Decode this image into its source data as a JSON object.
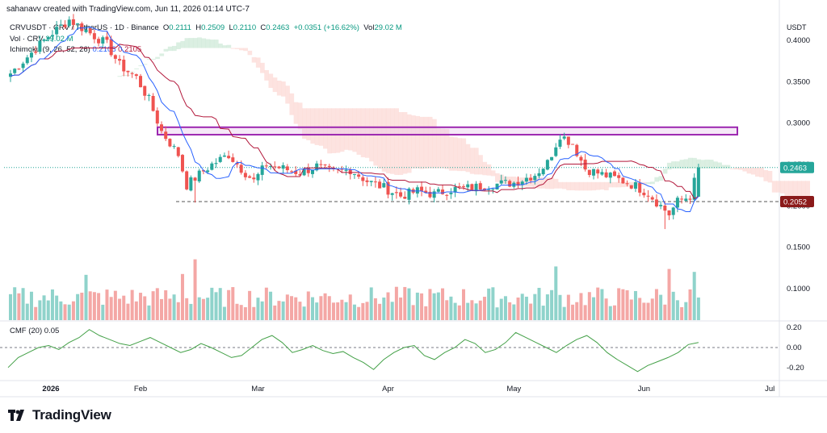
{
  "header": {
    "created_by": "sahanavv created with TradingView.com, Jun 11, 2026 01:14 UTC-7"
  },
  "legend": {
    "symbol": "CRVUSDT · CRV / TetherUS · 1D · Binance",
    "o_label": "O",
    "o_value": "0.2111",
    "h_label": "H",
    "h_value": "0.2509",
    "l_label": "L",
    "l_value": "0.2110",
    "c_label": "C",
    "c_value": "0.2463",
    "change": "+0.0351 (+16.62%)",
    "vol_label": "Vol",
    "vol_value": "29.02 M",
    "vol_line_label": "Vol · CRV",
    "vol_line_value": "29.02 M",
    "ichimoku_label": "Ichimoku (9, 26, 52, 26)",
    "ichimoku_v1": "0.2105",
    "ichimoku_v2": "0.2105"
  },
  "cmf": {
    "label": "CMF (20)",
    "value": "0.05"
  },
  "brand": {
    "name": "TradingView",
    "icon": "tradingview-logo-icon"
  },
  "colors": {
    "up": "#26a69a",
    "down": "#ef5350",
    "vol_up": "#8fd3cb",
    "vol_down": "#f4a7a5",
    "conversion": "#2962ff",
    "base": "#b2173a",
    "cloud_red": "#fcd9d5",
    "cloud_green": "#cfead8",
    "zone": "#9c27b0",
    "cmf": "#43a047"
  },
  "chart_data": {
    "type": "candlestick",
    "title": "CRVUSDT · CRV / TetherUS · 1D · Binance",
    "price_axis": {
      "unit": "USDT",
      "ticks": [
        "0.4000",
        "0.3500",
        "0.3000",
        "0.2500",
        "0.2000",
        "0.1500",
        "0.1000"
      ]
    },
    "time_axis": {
      "labels": [
        "2026",
        "Feb",
        "Mar",
        "Apr",
        "May",
        "Jun",
        "Jul"
      ]
    },
    "cmf_axis": {
      "ticks": [
        "0.20",
        "0.00",
        "-0.20"
      ]
    },
    "current_price": "0.2463",
    "support_level": "0.2052",
    "resistance_zone": [
      0.286,
      0.295
    ],
    "waypoints": [
      [
        0,
        0.36
      ],
      [
        4,
        0.38
      ],
      [
        9,
        0.405
      ],
      [
        14,
        0.425
      ],
      [
        18,
        0.412
      ],
      [
        23,
        0.395
      ],
      [
        26,
        0.37
      ],
      [
        30,
        0.355
      ],
      [
        33,
        0.328
      ],
      [
        36,
        0.29
      ],
      [
        40,
        0.262
      ],
      [
        42,
        0.225
      ],
      [
        45,
        0.238
      ],
      [
        48,
        0.25
      ],
      [
        52,
        0.262
      ],
      [
        55,
        0.245
      ],
      [
        58,
        0.23
      ],
      [
        61,
        0.25
      ],
      [
        65,
        0.245
      ],
      [
        69,
        0.24
      ],
      [
        73,
        0.248
      ],
      [
        77,
        0.24
      ],
      [
        81,
        0.244
      ],
      [
        85,
        0.23
      ],
      [
        89,
        0.222
      ],
      [
        93,
        0.212
      ],
      [
        97,
        0.218
      ],
      [
        101,
        0.214
      ],
      [
        105,
        0.22
      ],
      [
        110,
        0.222
      ],
      [
        115,
        0.226
      ],
      [
        120,
        0.228
      ],
      [
        125,
        0.238
      ],
      [
        128,
        0.252
      ],
      [
        131,
        0.286
      ],
      [
        134,
        0.275
      ],
      [
        137,
        0.245
      ],
      [
        141,
        0.238
      ],
      [
        145,
        0.232
      ],
      [
        149,
        0.224
      ],
      [
        152,
        0.215
      ],
      [
        155,
        0.2
      ],
      [
        157,
        0.19
      ],
      [
        159,
        0.205
      ],
      [
        162,
        0.212
      ],
      [
        164,
        0.2463
      ]
    ],
    "volume_peaks": [
      [
        44,
        0.145
      ],
      [
        41,
        0.11
      ],
      [
        130,
        0.128
      ],
      [
        157,
        0.122
      ],
      [
        163,
        0.115
      ],
      [
        18,
        0.108
      ]
    ],
    "cmf_values": [
      -0.2,
      -0.1,
      -0.05,
      0.0,
      0.02,
      -0.02,
      0.05,
      0.1,
      0.18,
      0.12,
      0.08,
      0.04,
      0.02,
      0.06,
      0.1,
      0.05,
      0.0,
      -0.05,
      -0.02,
      0.04,
      0.0,
      -0.05,
      -0.1,
      -0.08,
      0.0,
      0.08,
      0.12,
      0.05,
      -0.05,
      -0.02,
      0.02,
      -0.03,
      -0.06,
      -0.04,
      -0.1,
      -0.15,
      -0.22,
      -0.12,
      -0.05,
      0.0,
      0.02,
      -0.08,
      -0.12,
      -0.05,
      0.0,
      0.08,
      0.04,
      -0.05,
      -0.02,
      0.05,
      0.15,
      0.1,
      0.05,
      0.0,
      -0.05,
      0.02,
      0.08,
      0.12,
      0.05,
      -0.05,
      -0.12,
      -0.18,
      -0.24,
      -0.18,
      -0.14,
      -0.1,
      -0.05,
      0.03,
      0.05
    ]
  }
}
